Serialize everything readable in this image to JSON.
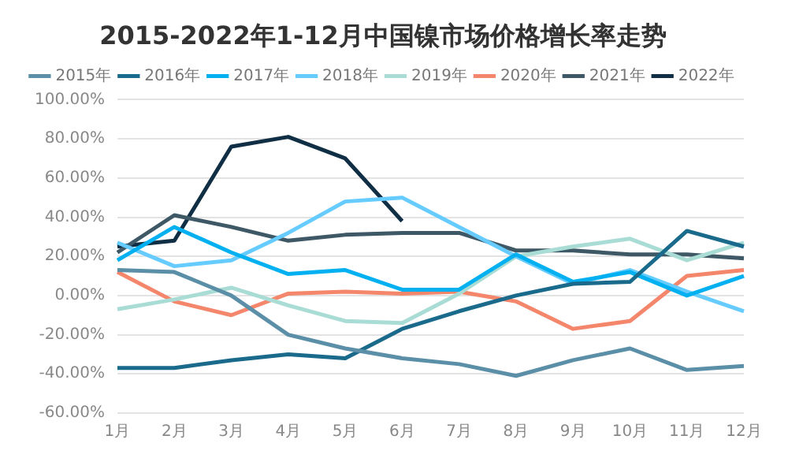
{
  "chart_data": {
    "type": "line",
    "title": "2015-2022年1-12月中国镍市场价格增长率走势",
    "categories": [
      "1月",
      "2月",
      "3月",
      "4月",
      "5月",
      "6月",
      "7月",
      "8月",
      "9月",
      "10月",
      "11月",
      "12月"
    ],
    "series": [
      {
        "name": "2015年",
        "color": "#5b8fa8",
        "values": [
          13,
          12,
          0,
          -20,
          -27,
          -32,
          -35,
          -41,
          -33,
          -27,
          -38,
          -36
        ]
      },
      {
        "name": "2016年",
        "color": "#1a6a8c",
        "values": [
          -37,
          -37,
          -33,
          -30,
          -32,
          -17,
          -8,
          0,
          6,
          7,
          33,
          25
        ]
      },
      {
        "name": "2017年",
        "color": "#00b0f0",
        "values": [
          18,
          35,
          22,
          11,
          13,
          3,
          3,
          21,
          7,
          12,
          0,
          10
        ]
      },
      {
        "name": "2018年",
        "color": "#66ccff",
        "values": [
          27,
          15,
          18,
          32,
          48,
          50,
          35,
          20,
          6,
          13,
          2,
          -8
        ]
      },
      {
        "name": "2019年",
        "color": "#a8dcd4",
        "values": [
          -7,
          -2,
          4,
          -5,
          -13,
          -14,
          1,
          20,
          25,
          29,
          18,
          27
        ]
      },
      {
        "name": "2020年",
        "color": "#f4866b",
        "values": [
          12,
          -3,
          -10,
          1,
          2,
          1,
          2,
          -3,
          -17,
          -13,
          10,
          13
        ]
      },
      {
        "name": "2021年",
        "color": "#3e5866",
        "values": [
          22,
          41,
          35,
          28,
          31,
          32,
          32,
          23,
          23,
          21,
          21,
          19
        ]
      },
      {
        "name": "2022年",
        "color": "#102f45",
        "values": [
          25,
          28,
          76,
          81,
          70,
          38,
          null,
          null,
          null,
          null,
          null,
          null
        ]
      }
    ],
    "ylim": [
      -60,
      100
    ],
    "yticks": [
      {
        "value": -60,
        "label": "-60.00%"
      },
      {
        "value": -40,
        "label": "-40.00%"
      },
      {
        "value": -20,
        "label": "-20.00%"
      },
      {
        "value": 0,
        "label": "0.00%"
      },
      {
        "value": 20,
        "label": "20.00%"
      },
      {
        "value": 40,
        "label": "40.00%"
      },
      {
        "value": 60,
        "label": "60.00%"
      },
      {
        "value": 80,
        "label": "80.00%"
      },
      {
        "value": 100,
        "label": "100.00%"
      }
    ],
    "grid": "y",
    "legend": "top",
    "marker": "none",
    "line_style": "solid"
  }
}
